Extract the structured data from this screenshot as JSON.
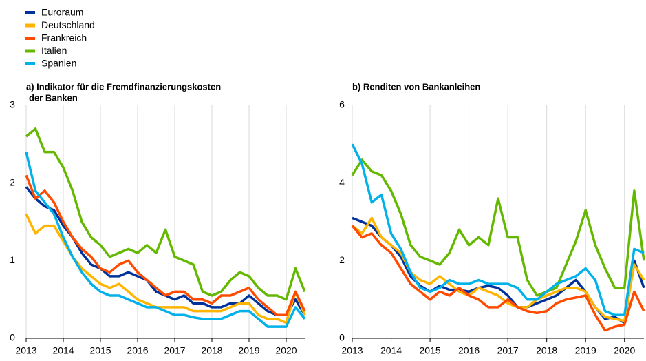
{
  "chart_data": [
    {
      "type": "line",
      "title": [
        "a) Indikator für die Fremdfinanzierungskosten",
        "der Banken"
      ],
      "x": [
        2013,
        2013.25,
        2013.5,
        2013.75,
        2014,
        2014.25,
        2014.5,
        2014.75,
        2015,
        2015.25,
        2015.5,
        2015.75,
        2016,
        2016.25,
        2016.5,
        2016.75,
        2017,
        2017.25,
        2017.5,
        2017.75,
        2018,
        2018.25,
        2018.5,
        2018.75,
        2019,
        2019.25,
        2019.5,
        2019.75,
        2020,
        2020.25,
        2020.5
      ],
      "xlim": [
        2013,
        2020.5
      ],
      "xticks": [
        2013,
        2014,
        2015,
        2016,
        2017,
        2018,
        2019,
        2020
      ],
      "ylim": [
        0,
        3
      ],
      "yticks": [
        0,
        1,
        2,
        3
      ],
      "grid": "x",
      "series": [
        {
          "name": "Euroraum",
          "color": "#003299",
          "values": [
            1.95,
            1.8,
            1.7,
            1.65,
            1.45,
            1.3,
            1.1,
            0.95,
            0.9,
            0.8,
            0.8,
            0.85,
            0.8,
            0.75,
            0.6,
            0.55,
            0.5,
            0.55,
            0.45,
            0.45,
            0.4,
            0.4,
            0.45,
            0.45,
            0.55,
            0.45,
            0.35,
            0.3,
            0.3,
            0.5,
            0.3
          ]
        },
        {
          "name": "Deutschland",
          "color": "#ffb400",
          "values": [
            1.6,
            1.35,
            1.45,
            1.45,
            1.25,
            1.05,
            0.9,
            0.8,
            0.7,
            0.65,
            0.7,
            0.6,
            0.5,
            0.45,
            0.4,
            0.4,
            0.4,
            0.4,
            0.35,
            0.35,
            0.35,
            0.35,
            0.4,
            0.45,
            0.45,
            0.3,
            0.25,
            0.25,
            0.2,
            0.6,
            0.3
          ]
        },
        {
          "name": "Frankreich",
          "color": "#ff4b00",
          "values": [
            2.1,
            1.8,
            1.9,
            1.75,
            1.5,
            1.3,
            1.15,
            1.05,
            0.9,
            0.85,
            0.95,
            1.0,
            0.85,
            0.75,
            0.65,
            0.55,
            0.6,
            0.6,
            0.5,
            0.5,
            0.45,
            0.55,
            0.55,
            0.6,
            0.65,
            0.5,
            0.4,
            0.3,
            0.3,
            0.6,
            0.35
          ]
        },
        {
          "name": "Italien",
          "color": "#65b800",
          "values": [
            2.6,
            2.7,
            2.4,
            2.4,
            2.2,
            1.9,
            1.5,
            1.3,
            1.2,
            1.05,
            1.1,
            1.15,
            1.1,
            1.2,
            1.1,
            1.4,
            1.05,
            1.0,
            0.95,
            0.6,
            0.55,
            0.6,
            0.75,
            0.85,
            0.8,
            0.65,
            0.55,
            0.55,
            0.5,
            0.9,
            0.6
          ]
        },
        {
          "name": "Spanien",
          "color": "#00b1ea",
          "values": [
            2.4,
            1.9,
            1.75,
            1.6,
            1.3,
            1.05,
            0.85,
            0.7,
            0.6,
            0.55,
            0.55,
            0.5,
            0.45,
            0.4,
            0.4,
            0.35,
            0.3,
            0.3,
            0.27,
            0.25,
            0.25,
            0.25,
            0.3,
            0.35,
            0.35,
            0.25,
            0.15,
            0.15,
            0.15,
            0.4,
            0.25
          ]
        }
      ]
    },
    {
      "type": "line",
      "title": [
        "b) Renditen von Bankanleihen"
      ],
      "x": [
        2013,
        2013.25,
        2013.5,
        2013.75,
        2014,
        2014.25,
        2014.5,
        2014.75,
        2015,
        2015.25,
        2015.5,
        2015.75,
        2016,
        2016.25,
        2016.5,
        2016.75,
        2017,
        2017.25,
        2017.5,
        2017.75,
        2018,
        2018.25,
        2018.5,
        2018.75,
        2019,
        2019.25,
        2019.5,
        2019.75,
        2020,
        2020.25,
        2020.5
      ],
      "xlim": [
        2013,
        2020.5
      ],
      "xticks": [
        2013,
        2014,
        2015,
        2016,
        2017,
        2018,
        2019,
        2020
      ],
      "ylim": [
        0,
        6
      ],
      "yticks": [
        0,
        2,
        4,
        6
      ],
      "grid": "x",
      "series": [
        {
          "color": "#003299",
          "values": [
            3.1,
            3.0,
            2.9,
            2.6,
            2.4,
            2.1,
            1.6,
            1.35,
            1.2,
            1.35,
            1.25,
            1.25,
            1.2,
            1.3,
            1.35,
            1.3,
            1.1,
            0.8,
            0.8,
            0.9,
            1.0,
            1.1,
            1.3,
            1.5,
            1.2,
            0.8,
            0.5,
            0.55,
            0.4,
            2.0,
            1.3
          ]
        },
        {
          "color": "#ffb400",
          "values": [
            2.9,
            2.7,
            3.1,
            2.6,
            2.4,
            2.2,
            1.7,
            1.5,
            1.4,
            1.6,
            1.4,
            1.2,
            1.1,
            1.3,
            1.2,
            1.1,
            0.9,
            0.8,
            0.8,
            1.0,
            1.1,
            1.2,
            1.3,
            1.3,
            1.2,
            0.8,
            0.55,
            0.5,
            0.45,
            1.9,
            1.5
          ]
        },
        {
          "color": "#ff4b00",
          "values": [
            2.9,
            2.6,
            2.7,
            2.4,
            2.2,
            1.8,
            1.4,
            1.2,
            1.0,
            1.2,
            1.1,
            1.3,
            1.1,
            1.0,
            0.8,
            0.8,
            1.0,
            0.8,
            0.7,
            0.65,
            0.7,
            0.9,
            1.0,
            1.05,
            1.1,
            0.6,
            0.2,
            0.3,
            0.35,
            1.2,
            0.7
          ]
        },
        {
          "color": "#65b800",
          "values": [
            4.2,
            4.6,
            4.3,
            4.2,
            3.8,
            3.2,
            2.4,
            2.1,
            2.0,
            1.9,
            2.2,
            2.8,
            2.4,
            2.6,
            2.4,
            3.6,
            2.6,
            2.6,
            1.5,
            1.1,
            1.2,
            1.3,
            1.9,
            2.5,
            3.3,
            2.4,
            1.8,
            1.3,
            1.3,
            3.8,
            2.0
          ]
        },
        {
          "color": "#00b1ea",
          "values": [
            5.0,
            4.5,
            3.5,
            3.7,
            2.7,
            2.3,
            1.7,
            1.3,
            1.2,
            1.3,
            1.5,
            1.4,
            1.4,
            1.5,
            1.4,
            1.4,
            1.4,
            1.3,
            1.0,
            1.0,
            1.2,
            1.4,
            1.5,
            1.6,
            1.8,
            1.5,
            0.7,
            0.6,
            0.6,
            2.3,
            2.2
          ]
        }
      ]
    }
  ]
}
